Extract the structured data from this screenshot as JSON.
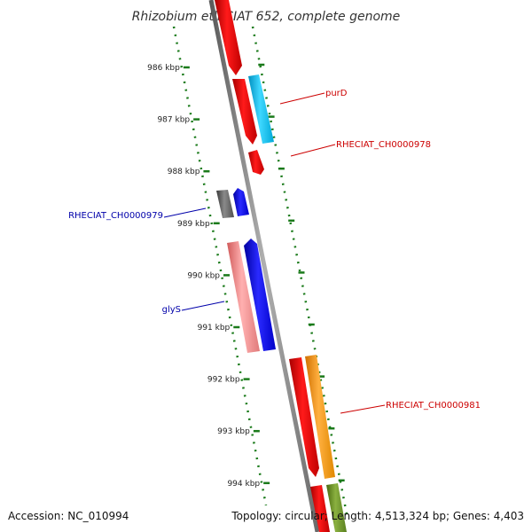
{
  "title": "Rhizobium etli CIAT 652, complete genome",
  "footer": {
    "accession": "Accession: NC_010994",
    "summary": "Topology: circular; Length: 4,513,324 bp; Genes: 4,403"
  },
  "colors": {
    "backbone": "#7a7a7a",
    "tick": "#1a7a1a",
    "label_right": "#cc0000",
    "label_left": "#0000aa"
  },
  "ticks": [
    {
      "label": "986 kbp"
    },
    {
      "label": "987 kbp"
    },
    {
      "label": "988 kbp"
    },
    {
      "label": "989 kbp"
    },
    {
      "label": "990 kbp"
    },
    {
      "label": "991 kbp"
    },
    {
      "label": "992 kbp"
    },
    {
      "label": "993 kbp"
    },
    {
      "label": "994 kbp"
    }
  ],
  "labels": {
    "purD": "purD",
    "ch978": "RHECIAT_CH0000978",
    "ch979": "RHECIAT_CH0000979",
    "glyS": "glyS",
    "ch981": "RHECIAT_CH0000981"
  }
}
